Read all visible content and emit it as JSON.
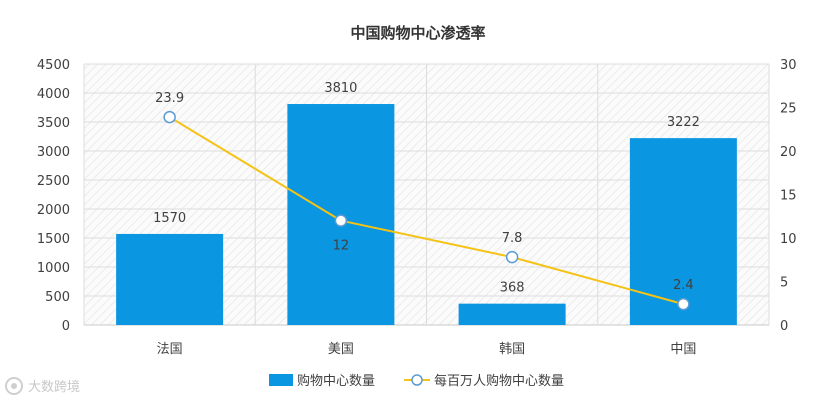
{
  "chart_data": {
    "type": "bar",
    "title": "中国购物中心渗透率",
    "categories": [
      "法国",
      "美国",
      "韩国",
      "中国"
    ],
    "series": [
      {
        "name": "购物中心数量",
        "type": "bar",
        "axis": "left",
        "values": [
          1570,
          3810,
          368,
          3222
        ]
      },
      {
        "name": "每百万人购物中心数量",
        "type": "line",
        "axis": "right",
        "values": [
          23.9,
          12,
          7.8,
          2.4
        ]
      }
    ],
    "y_left": {
      "min": 0,
      "max": 4500,
      "step": 500
    },
    "y_right": {
      "min": 0,
      "max": 30,
      "step": 5
    },
    "legend_position": "bottom",
    "colors": {
      "bar": "#0a96e0",
      "line": "#f5c216",
      "marker_stroke": "#5b9bd5"
    }
  },
  "watermark": "大数跨境"
}
